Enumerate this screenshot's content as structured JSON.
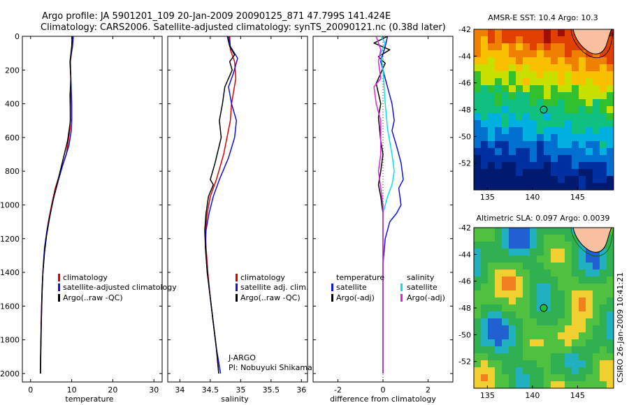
{
  "header": {
    "line1": "Argo profile: JA 5901201_109 20-Jan-2009 20090125_871 47.799S 141.424E",
    "line2": "Climatology: CARS2006. Satellite-adjusted climatology: synTS_20090121.nc (0.38d later)"
  },
  "colors": {
    "climatology": "#e00000",
    "satellite": "#1010e0",
    "argo": "#000000",
    "sat_salinity": "#00e6e6",
    "argo_adj_salinity": "#e020e0"
  },
  "chart_data": [
    {
      "type": "line",
      "title": "",
      "xlabel": "temperature",
      "ylabel": "",
      "xlim": [
        -2,
        32
      ],
      "ylim": [
        2050,
        0
      ],
      "xticks": [
        0,
        10,
        20,
        30
      ],
      "yticks": [
        0,
        200,
        400,
        600,
        800,
        1000,
        1200,
        1400,
        1600,
        1800,
        2000
      ],
      "legend": [
        "climatology",
        "satellite-adjusted climatology",
        "Argo(..raw -QC)"
      ],
      "series": [
        {
          "name": "climatology",
          "color": "red",
          "points": [
            [
              10.2,
              0
            ],
            [
              10.1,
              60
            ],
            [
              9.7,
              150
            ],
            [
              9.8,
              300
            ],
            [
              9.6,
              550
            ],
            [
              8.7,
              700
            ],
            [
              7.3,
              800
            ],
            [
              6.0,
              900
            ],
            [
              5.1,
              1000
            ],
            [
              4.3,
              1100
            ],
            [
              3.7,
              1200
            ],
            [
              3.3,
              1300
            ],
            [
              3.0,
              1400
            ],
            [
              2.8,
              1500
            ],
            [
              2.6,
              1650
            ],
            [
              2.5,
              1800
            ],
            [
              2.4,
              1950
            ],
            [
              2.4,
              2000
            ]
          ]
        },
        {
          "name": "satellite-adjusted climatology",
          "color": "blue",
          "points": [
            [
              10.4,
              0
            ],
            [
              10.2,
              60
            ],
            [
              9.6,
              150
            ],
            [
              9.8,
              250
            ],
            [
              10.0,
              400
            ],
            [
              10.0,
              500
            ],
            [
              9.9,
              560
            ],
            [
              9.3,
              650
            ],
            [
              8.0,
              750
            ],
            [
              6.8,
              850
            ],
            [
              5.7,
              950
            ],
            [
              4.8,
              1050
            ],
            [
              4.0,
              1150
            ],
            [
              3.4,
              1250
            ],
            [
              3.1,
              1350
            ],
            [
              2.9,
              1450
            ],
            [
              2.7,
              1600
            ],
            [
              2.5,
              1800
            ],
            [
              2.4,
              1950
            ],
            [
              2.4,
              2000
            ]
          ]
        },
        {
          "name": "Argo(..raw -QC)",
          "color": "black",
          "points": [
            [
              10.1,
              0
            ],
            [
              10.0,
              60
            ],
            [
              9.6,
              150
            ],
            [
              9.8,
              250
            ],
            [
              9.6,
              350
            ],
            [
              9.7,
              500
            ],
            [
              9.0,
              620
            ],
            [
              8.0,
              720
            ],
            [
              7.0,
              820
            ],
            [
              6.2,
              900
            ],
            [
              5.4,
              980
            ],
            [
              4.6,
              1080
            ],
            [
              3.9,
              1180
            ],
            [
              3.4,
              1280
            ],
            [
              3.0,
              1400
            ],
            [
              2.8,
              1520
            ],
            [
              2.6,
              1700
            ],
            [
              2.5,
              1850
            ],
            [
              2.4,
              2000
            ]
          ]
        }
      ]
    },
    {
      "type": "line",
      "title": "",
      "xlabel": "salinity",
      "ylabel": "",
      "xlim": [
        33.8,
        36.1
      ],
      "ylim": [
        2050,
        0
      ],
      "xticks": [
        34,
        34.5,
        35,
        35.5,
        36
      ],
      "xticklabels": [
        "34",
        "34.5",
        "35",
        "35.5",
        "36"
      ],
      "legend": [
        "climatology",
        "satellite adj. clim.",
        "Argo(..raw -QC)"
      ],
      "annotation": [
        "J-ARGO",
        "PI: Nobuyuki Shikama"
      ],
      "series": [
        {
          "name": "climatology",
          "color": "red",
          "points": [
            [
              34.82,
              0
            ],
            [
              34.83,
              80
            ],
            [
              34.9,
              150
            ],
            [
              34.92,
              250
            ],
            [
              34.85,
              400
            ],
            [
              34.83,
              500
            ],
            [
              34.72,
              700
            ],
            [
              34.6,
              850
            ],
            [
              34.5,
              950
            ],
            [
              34.45,
              1050
            ],
            [
              34.42,
              1150
            ],
            [
              34.43,
              1250
            ],
            [
              34.46,
              1400
            ],
            [
              34.5,
              1550
            ],
            [
              34.55,
              1700
            ],
            [
              34.6,
              1850
            ],
            [
              34.64,
              2000
            ]
          ]
        },
        {
          "name": "satellite adj. clim.",
          "color": "blue",
          "points": [
            [
              34.8,
              0
            ],
            [
              34.83,
              60
            ],
            [
              34.95,
              130
            ],
            [
              34.88,
              220
            ],
            [
              34.8,
              300
            ],
            [
              34.85,
              400
            ],
            [
              34.93,
              500
            ],
            [
              34.9,
              600
            ],
            [
              34.8,
              720
            ],
            [
              34.65,
              850
            ],
            [
              34.55,
              950
            ],
            [
              34.48,
              1050
            ],
            [
              34.43,
              1150
            ],
            [
              34.42,
              1250
            ],
            [
              34.45,
              1400
            ],
            [
              34.5,
              1550
            ],
            [
              34.55,
              1700
            ],
            [
              34.6,
              1850
            ],
            [
              34.67,
              2000
            ]
          ]
        },
        {
          "name": "Argo(..raw -QC)",
          "color": "black",
          "points": [
            [
              34.78,
              0
            ],
            [
              34.82,
              60
            ],
            [
              34.9,
              110
            ],
            [
              34.82,
              150
            ],
            [
              34.86,
              200
            ],
            [
              34.74,
              300
            ],
            [
              34.7,
              400
            ],
            [
              34.65,
              500
            ],
            [
              34.68,
              600
            ],
            [
              34.58,
              750
            ],
            [
              34.5,
              850
            ],
            [
              34.55,
              880
            ],
            [
              34.47,
              950
            ],
            [
              34.43,
              1050
            ],
            [
              34.41,
              1150
            ],
            [
              34.42,
              1250
            ],
            [
              34.45,
              1400
            ],
            [
              34.5,
              1550
            ],
            [
              34.55,
              1700
            ],
            [
              34.6,
              1850
            ],
            [
              34.64,
              2000
            ]
          ]
        }
      ]
    },
    {
      "type": "line",
      "title": "",
      "xlabel": "difference from climatology",
      "ylabel": "",
      "xlim": [
        -3.1,
        3.1
      ],
      "ylim": [
        2050,
        0
      ],
      "xticks": [
        -2,
        0,
        2
      ],
      "legend_left_title": "temperature",
      "legend_right_title": "salinity",
      "legend_left": [
        "satellite",
        "Argo(-adj)"
      ],
      "legend_right": [
        "satellite",
        "Argo(-adj)"
      ],
      "series": [
        {
          "name": "temperature satellite",
          "color": "blue",
          "points": [
            [
              0.2,
              0
            ],
            [
              0.1,
              60
            ],
            [
              -0.1,
              150
            ],
            [
              0.1,
              250
            ],
            [
              0.4,
              400
            ],
            [
              0.5,
              500
            ],
            [
              0.4,
              560
            ],
            [
              0.6,
              650
            ],
            [
              0.8,
              750
            ],
            [
              0.9,
              850
            ],
            [
              0.7,
              900
            ],
            [
              0.8,
              1000
            ],
            [
              0.6,
              1050
            ],
            [
              0.3,
              1100
            ],
            [
              0.1,
              1200
            ],
            [
              0.0,
              1350
            ],
            [
              0.0,
              1600
            ],
            [
              0.0,
              2000
            ]
          ]
        },
        {
          "name": "temperature Argo(-adj)",
          "color": "black",
          "points": [
            [
              0.2,
              0
            ],
            [
              -0.4,
              40
            ],
            [
              0.3,
              80
            ],
            [
              -0.2,
              120
            ],
            [
              0.1,
              160
            ],
            [
              -0.3,
              280
            ],
            [
              -0.1,
              400
            ],
            [
              -0.2,
              480
            ],
            [
              -0.1,
              620
            ],
            [
              0.0,
              700
            ],
            [
              -0.1,
              800
            ],
            [
              -0.2,
              880
            ],
            [
              -0.1,
              950
            ],
            [
              0.0,
              1050
            ],
            [
              0.0,
              1300
            ],
            [
              0.0,
              2000
            ]
          ]
        },
        {
          "name": "salinity satellite",
          "color": "cyan",
          "points": [
            [
              -0.1,
              0
            ],
            [
              0.1,
              40
            ],
            [
              -0.1,
              100
            ],
            [
              0.0,
              200
            ],
            [
              0.1,
              400
            ],
            [
              0.2,
              550
            ],
            [
              0.4,
              700
            ],
            [
              0.5,
              800
            ],
            [
              0.4,
              880
            ],
            [
              0.2,
              950
            ],
            [
              0.0,
              1050
            ],
            [
              0.0,
              1300
            ],
            [
              0.0,
              2000
            ]
          ]
        },
        {
          "name": "salinity Argo(-adj)",
          "color": "magenta",
          "points": [
            [
              -0.3,
              0
            ],
            [
              -0.1,
              80
            ],
            [
              -0.2,
              150
            ],
            [
              -0.1,
              250
            ],
            [
              -0.4,
              300
            ],
            [
              -0.3,
              400
            ],
            [
              -0.1,
              500
            ],
            [
              -0.1,
              600
            ],
            [
              -0.1,
              700
            ],
            [
              -0.2,
              800
            ],
            [
              -0.1,
              900
            ],
            [
              0.0,
              1000
            ],
            [
              0.0,
              1200
            ],
            [
              0.0,
              2000
            ]
          ]
        }
      ]
    },
    {
      "type": "heatmap",
      "title": "AMSR-E SST: 10.4 Argo: 10.3",
      "xlabel": "",
      "ylabel": "",
      "xlim": [
        133.5,
        149
      ],
      "ylim": [
        -54,
        -42
      ],
      "xticks": [
        135,
        140,
        145
      ],
      "yticks": [
        -42,
        -44,
        -46,
        -48,
        -50,
        -52
      ],
      "marker": [
        141.4,
        -47.8
      ],
      "bands": [
        {
          "lat_from": -42,
          "lat_to": -44.5,
          "color": "#e04000"
        },
        {
          "lat_from": -44.5,
          "lat_to": -46,
          "color": "#f8b000"
        },
        {
          "lat_from": -46,
          "lat_to": -47,
          "color": "#c8e000"
        },
        {
          "lat_from": -47,
          "lat_to": -49.5,
          "color": "#20c030"
        },
        {
          "lat_from": -49.5,
          "lat_to": -51.5,
          "color": "#00a0e0"
        },
        {
          "lat_from": -51.5,
          "lat_to": -54,
          "color": "#0030a0"
        }
      ]
    },
    {
      "type": "heatmap",
      "title": "Altimetric SLA: 0.097 Argo: 0.0039",
      "xlabel": "",
      "ylabel": "",
      "xlim": [
        133.5,
        149
      ],
      "ylim": [
        -54,
        -42
      ],
      "xticks": [
        135,
        140,
        145
      ],
      "yticks": [
        -42,
        -44,
        -46,
        -48,
        -50,
        -52
      ],
      "marker": [
        141.4,
        -47.8
      ],
      "side_label": "CSIRO 26-Jan-2009 10:41:21"
    }
  ]
}
